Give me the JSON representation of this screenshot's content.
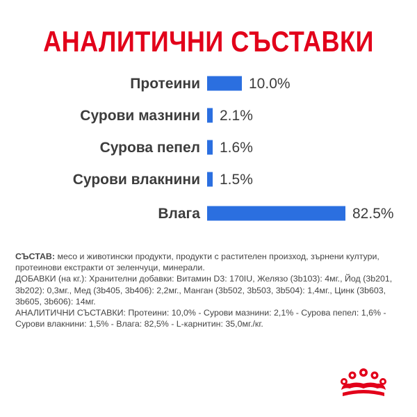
{
  "title": "АНАЛИТИЧНИ СЪСТАВКИ",
  "colors": {
    "accent": "#e2001a",
    "bar": "#2b6fe0",
    "text": "#3c3c3c"
  },
  "chart_data": {
    "type": "bar",
    "orientation": "horizontal",
    "categories": [
      "Протеини",
      "Сурови мазнини",
      "Сурова пепел",
      "Сурови влакнини",
      "Влага"
    ],
    "values": [
      10.0,
      2.1,
      1.6,
      1.5,
      82.5
    ],
    "value_labels": [
      "10.0%",
      "2.1%",
      "1.6%",
      "1.5%",
      "82.5%"
    ],
    "xlim": [
      0,
      82.5
    ],
    "grid": false
  },
  "composition": {
    "heading": "СЪСТАВ:",
    "text": " месо и животински продукти, продукти с растителен произход, зърнени култури, протеинови екстракти от зеленчуци, минерали.",
    "additives": "ДОБАВКИ (на кг.): Хранителни добавки: Витамин D3: 170IU, Желязо (3b103): 4мг., Йод (3b201, 3b202): 0,3мг., Мед (3b405, 3b406): 2,2мг., Манган (3b502, 3b503, 3b504): 1,4мг., Цинк (3b603, 3b605, 3b606): 14мг.",
    "analytical": "АНАЛИТИЧНИ СЪСТАВКИ: Протеини: 10,0% - Сурови мазнини: 2,1% - Сурова пепел: 1,6% - Сурови влакнини: 1,5% - Влага: 82,5% - L-карнитин: 35,0мг./кг."
  },
  "logo_icon": "royal-crown-icon"
}
